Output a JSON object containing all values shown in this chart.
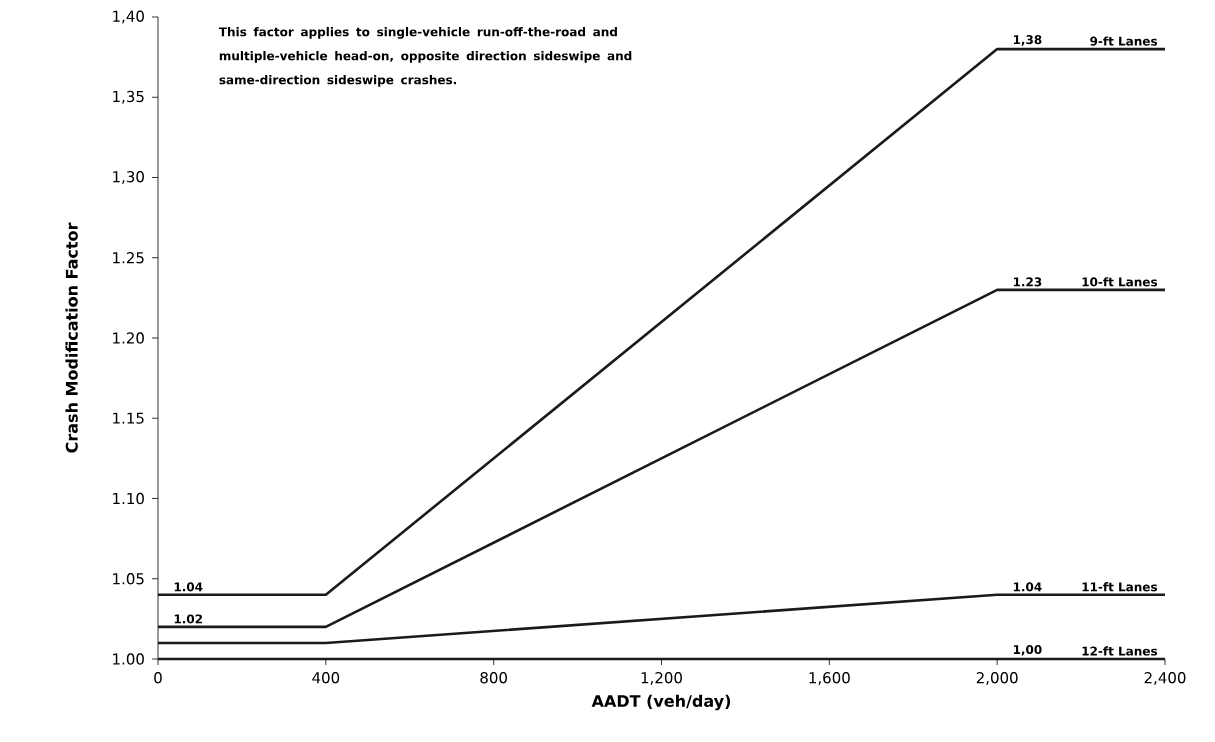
{
  "chart_data": {
    "type": "line",
    "xlabel": "AADT (veh/day)",
    "ylabel": "Crash Modification  Factor",
    "x": [
      0,
      400,
      2000,
      2400
    ],
    "series": [
      {
        "name": "9-ft Lanes",
        "color": "#1a1a1a",
        "values": [
          1.04,
          1.04,
          1.38,
          1.38
        ],
        "value_labels": [
          "1.04",
          null,
          "1,38",
          null
        ]
      },
      {
        "name": "10-ft Lanes",
        "color": "#1a1a1a",
        "values": [
          1.02,
          1.02,
          1.23,
          1.23
        ],
        "value_labels": [
          "1.02",
          null,
          "1.23",
          null
        ]
      },
      {
        "name": "11-ft Lanes",
        "color": "#1a1a1a",
        "values": [
          1.01,
          1.01,
          1.04,
          1.04
        ],
        "value_labels": [
          null,
          null,
          "1.04",
          null
        ]
      },
      {
        "name": "12-ft Lanes",
        "color": "#1a1a1a",
        "values": [
          1.0,
          1.0,
          1.0,
          1.0
        ],
        "value_labels": [
          null,
          null,
          "1,00",
          null
        ]
      }
    ],
    "xlim": [
      0,
      2400
    ],
    "xticks": [
      0,
      400,
      800,
      {
        "value": 1200,
        "label": "1,200"
      },
      {
        "value": 1600,
        "label": "1,600"
      },
      {
        "value": 2000,
        "label": "2,000"
      },
      {
        "value": 2400,
        "label": "2,400"
      }
    ],
    "ylim": [
      1.0,
      1.4
    ],
    "yticks": [
      {
        "value": 1.0,
        "label": "1.00"
      },
      {
        "value": 1.05,
        "label": "1.05"
      },
      {
        "value": 1.1,
        "label": "1.10"
      },
      {
        "value": 1.15,
        "label": "1.15"
      },
      {
        "value": 1.2,
        "label": "1.20"
      },
      {
        "value": 1.25,
        "label": "1.25"
      },
      {
        "value": 1.3,
        "label": "1,30"
      },
      {
        "value": 1.35,
        "label": "1,35"
      },
      {
        "value": 1.4,
        "label": "1,40"
      }
    ],
    "marker": "none",
    "line_style": "solid",
    "annotations": [
      "This factor applies to single-vehicle run-off-the-road and multiple-vehicle head-on, opposite direction sideswipe and same-direction sideswipe crashes."
    ]
  }
}
